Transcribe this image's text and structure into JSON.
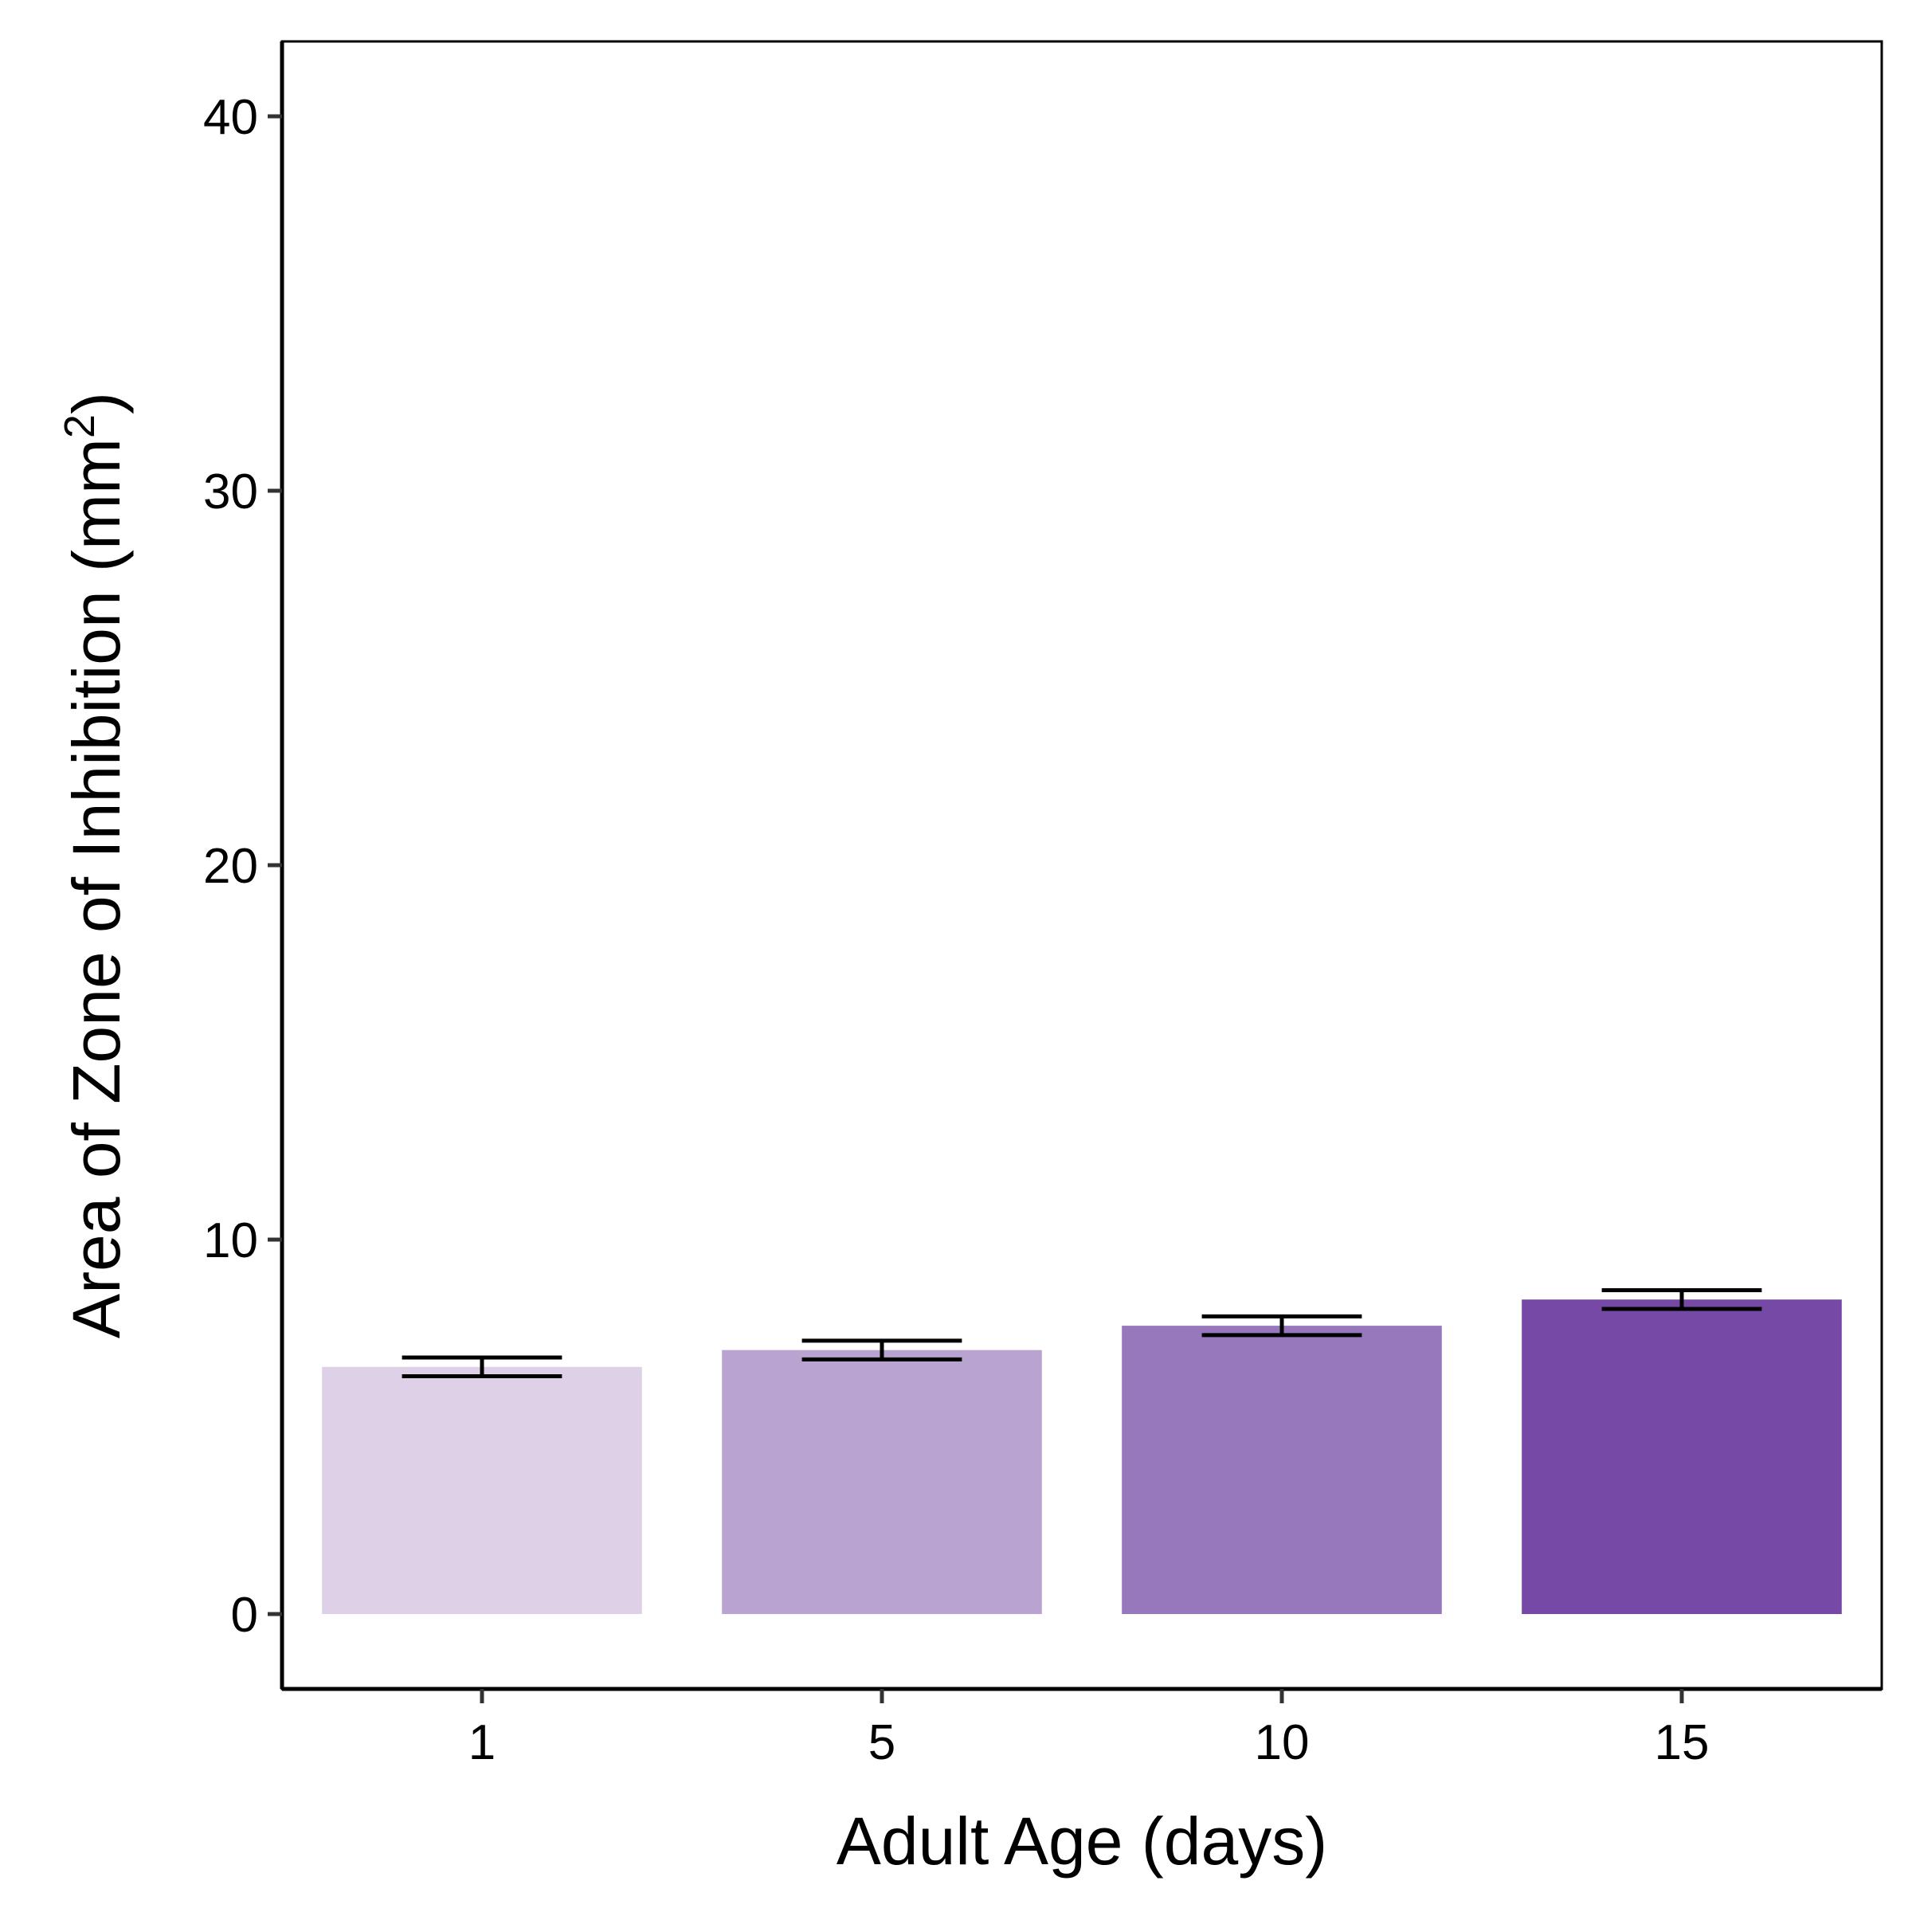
{
  "chart_data": {
    "type": "bar",
    "categories": [
      "1",
      "5",
      "10",
      "15"
    ],
    "values": [
      6.6,
      7.05,
      7.7,
      8.4
    ],
    "errors": [
      0.25,
      0.25,
      0.25,
      0.25
    ],
    "colors": [
      "#DDD0E7",
      "#B9A3D1",
      "#9778BC",
      "#7549A5"
    ],
    "error_bar_color": "#000000",
    "xlabel": "Adult Age (days)",
    "ylabel_main": "Area of Zone of Inhibition (mm",
    "ylabel_sup": "2",
    "ylabel_close": ")",
    "ylim": [
      -2,
      42
    ],
    "yticks": [
      0,
      10,
      20,
      30,
      40
    ],
    "ytick_labels": [
      "0",
      "10",
      "20",
      "30",
      "40"
    ],
    "grid": false,
    "legend": "none"
  }
}
